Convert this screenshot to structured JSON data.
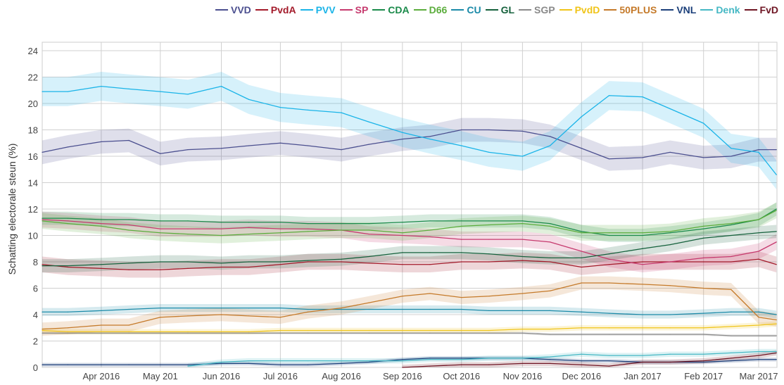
{
  "chart_data": {
    "type": "line",
    "title": "",
    "xlabel": "",
    "ylabel": "Schatting electorale steun (%)",
    "ylim": [
      0,
      24
    ],
    "yticks": [
      0,
      2,
      4,
      6,
      8,
      10,
      12,
      14,
      16,
      18,
      20,
      22,
      24
    ],
    "xtick_labels": [
      "Apr 2016",
      "May 201",
      "Jun 2016",
      "Jul 2016",
      "Aug 2016",
      "Sep 2016",
      "Oct 2016",
      "Nov 2016",
      "Dec 2016",
      "Jan 2017",
      "Feb 2017",
      "Mar 2017"
    ],
    "xtick_dates": [
      "2016-04-01",
      "2016-05-01",
      "2016-06-01",
      "2016-07-01",
      "2016-08-01",
      "2016-09-01",
      "2016-10-01",
      "2016-11-01",
      "2016-12-01",
      "2017-01-01",
      "2017-02-01",
      "2017-03-01"
    ],
    "grid": true,
    "legend_position": "top-right",
    "x": [
      "2016-03-02",
      "2016-03-15",
      "2016-04-01",
      "2016-04-15",
      "2016-05-01",
      "2016-05-15",
      "2016-06-01",
      "2016-06-15",
      "2016-07-01",
      "2016-07-15",
      "2016-08-01",
      "2016-08-15",
      "2016-09-01",
      "2016-09-15",
      "2016-10-01",
      "2016-10-15",
      "2016-11-01",
      "2016-11-15",
      "2016-12-01",
      "2016-12-15",
      "2017-01-01",
      "2017-01-15",
      "2017-02-01",
      "2017-02-15",
      "2017-03-01",
      "2017-03-10"
    ],
    "series": [
      {
        "name": "VVD",
        "color": "#4b4f8f",
        "band": 0.9,
        "values": [
          16.3,
          16.7,
          17.1,
          17.2,
          16.2,
          16.5,
          16.6,
          16.8,
          17.0,
          16.8,
          16.5,
          16.9,
          17.3,
          17.5,
          18.0,
          18.0,
          17.9,
          17.5,
          16.6,
          15.8,
          15.9,
          16.3,
          15.9,
          16.0,
          16.5,
          16.5
        ]
      },
      {
        "name": "PvdA",
        "color": "#a31a2a",
        "band": 0.6,
        "values": [
          7.8,
          7.6,
          7.5,
          7.4,
          7.4,
          7.5,
          7.6,
          7.6,
          7.8,
          8.0,
          8.0,
          7.9,
          7.8,
          7.8,
          8.0,
          8.0,
          8.1,
          8.0,
          7.6,
          7.8,
          8.0,
          8.0,
          8.0,
          8.0,
          8.2,
          7.8
        ]
      },
      {
        "name": "PVV",
        "color": "#1ab4e8",
        "band": 1.1,
        "values": [
          20.9,
          20.9,
          21.3,
          21.1,
          20.9,
          20.7,
          21.3,
          20.3,
          19.7,
          19.5,
          19.3,
          18.6,
          17.8,
          17.3,
          16.8,
          16.3,
          16.0,
          16.8,
          19.0,
          20.6,
          20.5,
          19.6,
          18.5,
          16.6,
          16.3,
          14.6
        ]
      },
      {
        "name": "SP",
        "color": "#c63a6e",
        "band": 0.6,
        "values": [
          11.2,
          11.1,
          10.9,
          10.8,
          10.5,
          10.5,
          10.5,
          10.6,
          10.5,
          10.5,
          10.4,
          10.1,
          10.0,
          9.9,
          9.7,
          9.7,
          9.7,
          9.5,
          8.8,
          8.2,
          7.8,
          8.0,
          8.3,
          8.4,
          8.8,
          9.5
        ]
      },
      {
        "name": "CDA",
        "color": "#1a8a4a",
        "band": 0.5,
        "values": [
          11.3,
          11.3,
          11.2,
          11.2,
          11.1,
          11.1,
          11.0,
          11.0,
          11.0,
          10.9,
          10.9,
          10.9,
          11.0,
          11.1,
          11.1,
          11.1,
          11.1,
          10.9,
          10.3,
          10.0,
          10.0,
          10.2,
          10.5,
          10.8,
          11.2,
          12.0
        ]
      },
      {
        "name": "D66",
        "color": "#5bad3c",
        "band": 0.6,
        "values": [
          11.1,
          10.9,
          10.7,
          10.4,
          10.2,
          10.1,
          10.0,
          10.1,
          10.2,
          10.3,
          10.4,
          10.4,
          10.2,
          10.4,
          10.7,
          10.8,
          10.9,
          10.7,
          10.2,
          10.2,
          10.2,
          10.3,
          10.7,
          10.9,
          11.2,
          11.9
        ]
      },
      {
        "name": "CU",
        "color": "#1b8aa8",
        "band": 0.3,
        "values": [
          4.2,
          4.2,
          4.3,
          4.4,
          4.5,
          4.5,
          4.5,
          4.5,
          4.5,
          4.4,
          4.4,
          4.4,
          4.4,
          4.4,
          4.4,
          4.3,
          4.3,
          4.3,
          4.2,
          4.1,
          4.0,
          4.0,
          4.1,
          4.2,
          4.2,
          4.0
        ]
      },
      {
        "name": "GL",
        "color": "#15613c",
        "band": 0.5,
        "values": [
          7.7,
          7.7,
          7.8,
          7.9,
          8.0,
          8.0,
          7.9,
          8.0,
          8.0,
          8.1,
          8.2,
          8.4,
          8.7,
          8.7,
          8.7,
          8.6,
          8.4,
          8.3,
          8.3,
          8.6,
          9.0,
          9.3,
          9.8,
          10.0,
          10.2,
          10.3
        ]
      },
      {
        "name": "SGP",
        "color": "#8a8a8a",
        "band": 0.1,
        "values": [
          2.6,
          2.6,
          2.6,
          2.6,
          2.6,
          2.6,
          2.6,
          2.6,
          2.6,
          2.6,
          2.6,
          2.6,
          2.6,
          2.6,
          2.6,
          2.6,
          2.6,
          2.5,
          2.5,
          2.5,
          2.5,
          2.5,
          2.5,
          2.4,
          2.4,
          2.4
        ]
      },
      {
        "name": "PvdD",
        "color": "#f0c419",
        "band": 0.2,
        "values": [
          2.8,
          2.7,
          2.7,
          2.7,
          2.7,
          2.7,
          2.7,
          2.7,
          2.8,
          2.8,
          2.8,
          2.8,
          2.8,
          2.8,
          2.8,
          2.8,
          2.9,
          2.9,
          3.0,
          3.0,
          3.0,
          3.0,
          3.0,
          3.1,
          3.2,
          3.3
        ]
      },
      {
        "name": "50PLUS",
        "color": "#c57a2a",
        "band": 0.5,
        "values": [
          2.9,
          3.0,
          3.2,
          3.2,
          3.8,
          3.9,
          4.0,
          3.9,
          3.8,
          4.2,
          4.5,
          4.9,
          5.4,
          5.6,
          5.3,
          5.4,
          5.6,
          5.8,
          6.4,
          6.4,
          6.3,
          6.2,
          6.0,
          5.9,
          3.8,
          3.6
        ]
      },
      {
        "name": "VNL",
        "color": "#1b3f7a",
        "band": 0.15,
        "values": [
          0.2,
          0.2,
          0.2,
          0.2,
          0.2,
          0.2,
          0.3,
          0.3,
          0.2,
          0.2,
          0.3,
          0.4,
          0.6,
          0.7,
          0.7,
          0.7,
          0.7,
          0.6,
          0.5,
          0.5,
          0.4,
          0.4,
          0.4,
          0.5,
          0.6,
          0.6
        ]
      },
      {
        "name": "Denk",
        "color": "#45b8c4",
        "band": 0.2,
        "values": [
          null,
          null,
          null,
          null,
          null,
          0.1,
          0.4,
          0.5,
          0.5,
          0.5,
          0.5,
          0.5,
          0.5,
          0.6,
          0.6,
          0.7,
          0.7,
          0.8,
          1.0,
          0.9,
          0.9,
          1.0,
          1.0,
          1.1,
          1.2,
          1.2
        ]
      },
      {
        "name": "FvD",
        "color": "#6e1523",
        "band": 0.2,
        "values": [
          null,
          null,
          null,
          null,
          null,
          null,
          null,
          null,
          null,
          null,
          null,
          null,
          0.0,
          0.1,
          0.2,
          0.2,
          0.3,
          0.3,
          0.2,
          0.1,
          0.4,
          0.4,
          0.5,
          0.7,
          0.9,
          1.1
        ]
      }
    ]
  }
}
